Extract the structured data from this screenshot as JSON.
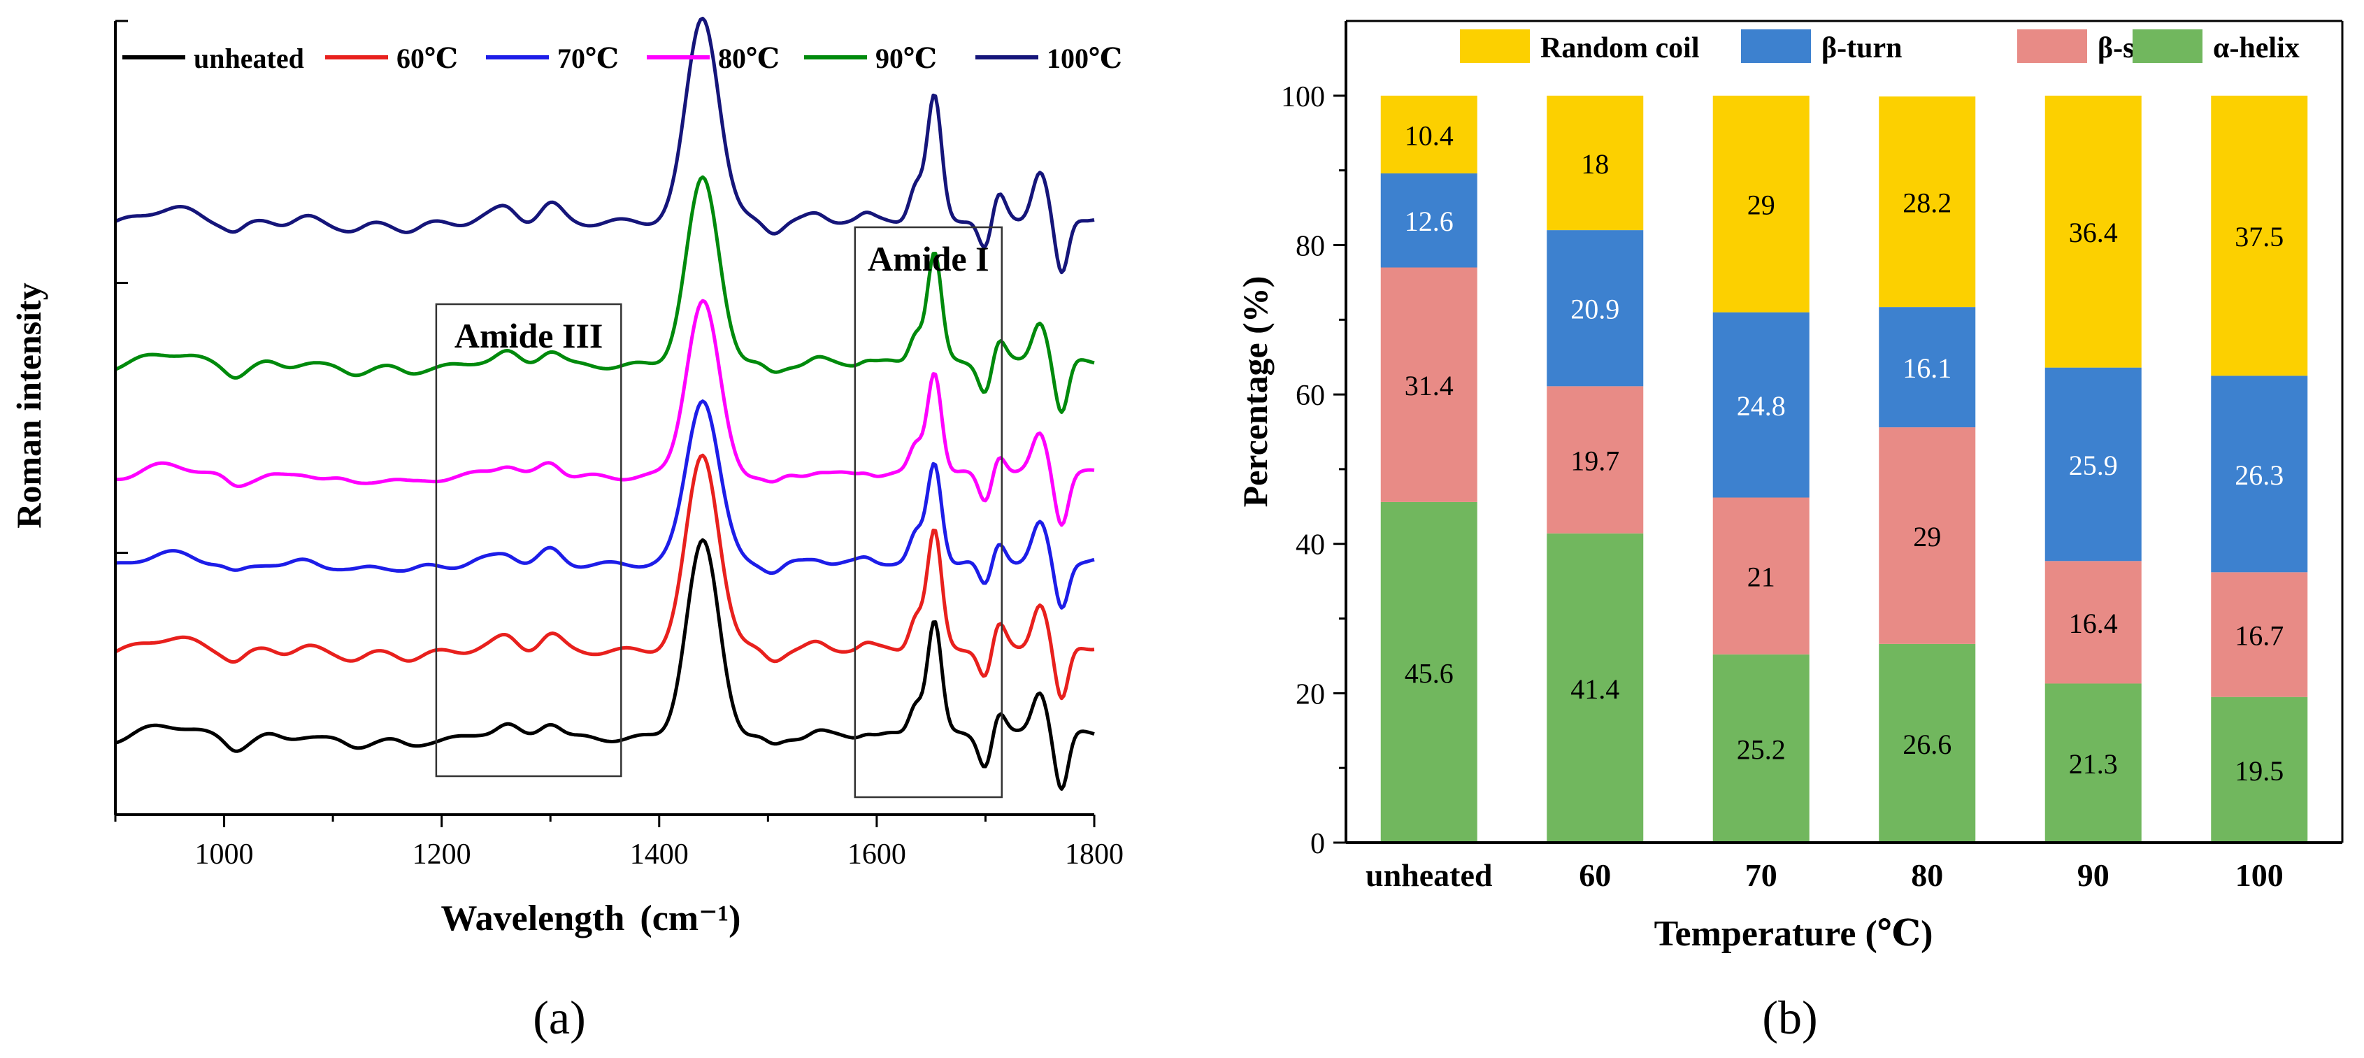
{
  "chart_data": [
    {
      "panel": "a",
      "type": "line",
      "title": "",
      "xlabel": "Wavelength",
      "xlabel_unit": "(cm⁻¹)",
      "ylabel": "Roman intensity",
      "xlim": [
        900,
        1800
      ],
      "x_ticks": [
        "1000",
        "1200",
        "1400",
        "1600",
        "1800"
      ],
      "y_tick_labels_shown": false,
      "legend_position": "top",
      "series": [
        {
          "name": "unheated",
          "color": "#000000",
          "baseline": 0.09
        },
        {
          "name": "60℃",
          "color": "#e8201d",
          "baseline": 0.2
        },
        {
          "name": "70℃",
          "color": "#1d1de8",
          "baseline": 0.31
        },
        {
          "name": "80℃",
          "color": "#ff00ff",
          "baseline": 0.42
        },
        {
          "name": "90℃",
          "color": "#008a0c",
          "baseline": 0.56
        },
        {
          "name": "100℃",
          "color": "#15157a",
          "baseline": 0.74
        }
      ],
      "annotations": [
        {
          "label": "Amide III",
          "x_range": [
            1195,
            1365
          ]
        },
        {
          "label": "Amide I",
          "x_range": [
            1580,
            1715
          ]
        }
      ],
      "panel_label": "(a)"
    },
    {
      "panel": "b",
      "type": "bar",
      "stacked": true,
      "title": "",
      "xlabel": "Temperature (℃)",
      "ylabel": "Percentage (%)",
      "ylim": [
        0,
        110
      ],
      "y_ticks": [
        "0",
        "20",
        "40",
        "60",
        "80",
        "100"
      ],
      "categories": [
        "unheated",
        "60",
        "70",
        "80",
        "90",
        "100"
      ],
      "legend_position": "top",
      "series": [
        {
          "name": "α-helix",
          "color": "#71b75e",
          "values": [
            45.6,
            41.4,
            25.2,
            26.6,
            21.3,
            19.5
          ],
          "labels": [
            "45.6",
            "41.4",
            "25.2",
            "26.6",
            "21.3",
            "19.5"
          ]
        },
        {
          "name": "β-sheet",
          "color": "#e88b86",
          "values": [
            31.4,
            19.7,
            21,
            29,
            16.4,
            16.7
          ],
          "labels": [
            "31.4",
            "19.7",
            "21",
            "29",
            "16.4",
            "16.7"
          ]
        },
        {
          "name": "β-turn",
          "color": "#3d81cf",
          "values": [
            12.6,
            20.9,
            24.8,
            16.1,
            25.9,
            26.3
          ],
          "labels": [
            "12.6",
            "20.9",
            "24.8",
            "16.1",
            "25.9",
            "26.3"
          ]
        },
        {
          "name": "Random coil",
          "color": "#fcd000",
          "values": [
            10.4,
            18,
            29,
            28.2,
            36.4,
            37.5
          ],
          "labels": [
            "10.4",
            "18",
            "29",
            "28.2",
            "36.4",
            "37.5"
          ]
        }
      ],
      "legend_order": [
        "Random coil",
        "β-turn",
        "β-sheet",
        "α-helix"
      ],
      "panel_label": "(b)"
    }
  ]
}
